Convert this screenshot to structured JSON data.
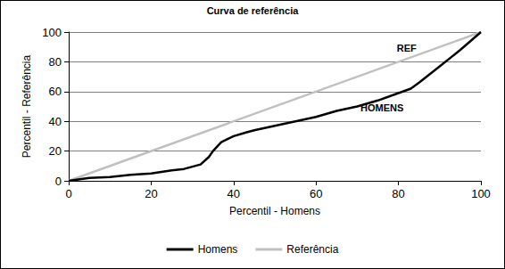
{
  "chart_data": {
    "type": "line",
    "title": "Curva de referência",
    "x_label": "Percentil - Homens",
    "y_label": "Percentil - Referência",
    "xlim": [
      0,
      100
    ],
    "xticks": [
      0,
      20,
      40,
      60,
      80,
      100
    ],
    "ylim": [
      0,
      100
    ],
    "yticks": [
      0,
      20,
      40,
      60,
      80,
      100
    ],
    "grid": true,
    "legend": "bottom",
    "series": [
      {
        "name": "Homens",
        "color": "#000000",
        "x": [
          0,
          5,
          10,
          15,
          20,
          25,
          28,
          30,
          32,
          34,
          35,
          37,
          40,
          43,
          45,
          50,
          55,
          60,
          65,
          70,
          75,
          80,
          83,
          85,
          90,
          95,
          100
        ],
        "values": [
          0,
          2,
          2.5,
          4,
          5,
          7,
          8,
          9.5,
          11,
          16,
          20,
          26,
          30,
          32.5,
          34,
          37,
          40,
          43,
          47,
          50,
          54,
          59,
          62,
          66,
          77,
          88,
          100
        ]
      },
      {
        "name": "Referência",
        "color": "#c0c0c0",
        "x": [
          0,
          100
        ],
        "values": [
          0,
          100
        ]
      }
    ],
    "annotations": [
      {
        "text": "REF",
        "x": 82,
        "y": 89,
        "series": "Referência"
      },
      {
        "text": "HOMENS",
        "x": 76,
        "y": 49,
        "series": "Homens"
      }
    ]
  }
}
